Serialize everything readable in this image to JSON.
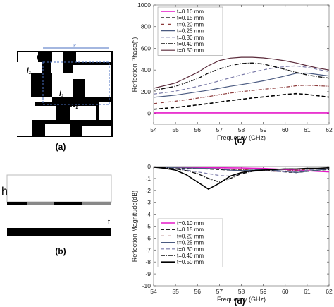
{
  "panels": {
    "a": {
      "label": "(a)",
      "dim_labels": {
        "p": "P",
        "w1": "W",
        "w1_sub": "1",
        "l1": "l",
        "l1_sub": "1",
        "w2": "W",
        "w2_sub": "2",
        "l2": "l",
        "l2_sub": "2"
      }
    },
    "b": {
      "label": "(b)",
      "h": "h",
      "t": "t"
    },
    "c": {
      "label": "(c)"
    },
    "d": {
      "label": "(d)"
    }
  },
  "chart_data": [
    {
      "id": "c",
      "type": "line",
      "xlabel": "Frequency (GHz)",
      "ylabel": "Reflection Phase(°)",
      "xlim": [
        54,
        62
      ],
      "ylim": [
        -100,
        1000
      ],
      "xticks": [
        54,
        55,
        56,
        57,
        58,
        59,
        60,
        61,
        62
      ],
      "yticks": [
        0,
        200,
        400,
        600,
        800,
        1000
      ],
      "legend_position": "top-right",
      "x": [
        54,
        55,
        56,
        56.5,
        57,
        57.5,
        58,
        58.5,
        59,
        59.5,
        60,
        60.5,
        61,
        61.5,
        62
      ],
      "series": [
        {
          "name": "t=0.10 mm",
          "color": "#e619c8",
          "dash": "",
          "width": 1.6,
          "values": [
            5,
            5,
            5,
            5,
            5,
            5,
            5,
            5,
            5,
            5,
            5,
            5,
            5,
            5,
            5
          ]
        },
        {
          "name": "t=0.15 mm",
          "color": "#000000",
          "dash": "5,3",
          "width": 1.6,
          "values": [
            38,
            55,
            78,
            90,
            105,
            118,
            130,
            142,
            152,
            163,
            175,
            182,
            175,
            162,
            150
          ]
        },
        {
          "name": "t=0.20 mm",
          "color": "#8c3a3a",
          "dash": "5,2,1,2",
          "width": 1.2,
          "values": [
            90,
            112,
            140,
            155,
            172,
            188,
            200,
            212,
            222,
            232,
            242,
            255,
            260,
            255,
            250
          ]
        },
        {
          "name": "t=0.25 mm",
          "color": "#4a5a80",
          "dash": "",
          "width": 1.2,
          "values": [
            148,
            168,
            198,
            214,
            232,
            250,
            266,
            282,
            300,
            322,
            345,
            370,
            372,
            358,
            345
          ]
        },
        {
          "name": "t=0.30 mm",
          "color": "#7a7aa8",
          "dash": "5,3",
          "width": 1.2,
          "values": [
            178,
            205,
            248,
            272,
            300,
            328,
            355,
            380,
            402,
            420,
            432,
            438,
            425,
            405,
            385
          ]
        },
        {
          "name": "t=0.40 mm",
          "color": "#111111",
          "dash": "6,2,1,2",
          "width": 1.4,
          "values": [
            212,
            250,
            320,
            372,
            410,
            440,
            460,
            465,
            455,
            432,
            405,
            378,
            355,
            338,
            325
          ]
        },
        {
          "name": "t=0.50 mm",
          "color": "#5a2a3a",
          "dash": "",
          "width": 1.2,
          "values": [
            232,
            280,
            378,
            440,
            488,
            510,
            518,
            518,
            512,
            500,
            485,
            465,
            440,
            418,
            400
          ]
        }
      ]
    },
    {
      "id": "d",
      "type": "line",
      "xlabel": "Frequency (GHz)",
      "ylabel": "Reflection Magnitude(dB)",
      "xlim": [
        54,
        62
      ],
      "ylim": [
        -10,
        0
      ],
      "xticks": [
        54,
        55,
        56,
        57,
        58,
        59,
        60,
        61,
        62
      ],
      "yticks": [
        -10,
        -9,
        -8,
        -7,
        -6,
        -5,
        -4,
        -3,
        -2,
        -1,
        0
      ],
      "legend_position": "bottom-left",
      "x": [
        54,
        54.5,
        55,
        55.5,
        56,
        56.5,
        57,
        57.5,
        58,
        58.5,
        59,
        59.5,
        60,
        60.5,
        61,
        61.5,
        62
      ],
      "series": [
        {
          "name": "t=0.10 mm",
          "color": "#e619c8",
          "dash": "",
          "width": 1.6,
          "values": [
            -0.05,
            -0.05,
            -0.06,
            -0.07,
            -0.08,
            -0.09,
            -0.1,
            -0.11,
            -0.12,
            -0.14,
            -0.16,
            -0.2,
            -0.25,
            -0.3,
            -0.35,
            -0.4,
            -0.45
          ]
        },
        {
          "name": "t=0.15 mm",
          "color": "#000000",
          "dash": "5,3",
          "width": 1.4,
          "values": [
            -0.05,
            -0.08,
            -0.12,
            -0.15,
            -0.18,
            -0.2,
            -0.25,
            -0.3,
            -0.32,
            -0.3,
            -0.28,
            -0.35,
            -0.45,
            -0.5,
            -0.4,
            -0.3,
            -0.25
          ]
        },
        {
          "name": "t=0.20 mm",
          "color": "#8c3a3a",
          "dash": "5,2,1,2",
          "width": 1.2,
          "values": [
            -0.05,
            -0.08,
            -0.1,
            -0.12,
            -0.15,
            -0.18,
            -0.2,
            -0.22,
            -0.25,
            -0.3,
            -0.35,
            -0.4,
            -0.38,
            -0.3,
            -0.25,
            -0.2,
            -0.2
          ]
        },
        {
          "name": "t=0.25 mm",
          "color": "#4a5a80",
          "dash": "",
          "width": 1.2,
          "values": [
            -0.05,
            -0.07,
            -0.1,
            -0.12,
            -0.14,
            -0.16,
            -0.2,
            -0.3,
            -0.35,
            -0.3,
            -0.25,
            -0.3,
            -0.4,
            -0.5,
            -0.4,
            -0.3,
            -0.2
          ]
        },
        {
          "name": "t=0.30 mm",
          "color": "#7a7aa8",
          "dash": "5,3",
          "width": 1.2,
          "values": [
            -0.05,
            -0.1,
            -0.2,
            -0.3,
            -0.45,
            -0.6,
            -0.75,
            -0.8,
            -0.6,
            -0.4,
            -0.35,
            -0.4,
            -0.45,
            -0.4,
            -0.3,
            -0.2,
            -0.15
          ]
        },
        {
          "name": "t=0.40 mm",
          "color": "#111111",
          "dash": "6,2,1,2",
          "width": 1.4,
          "values": [
            -0.05,
            -0.1,
            -0.2,
            -0.35,
            -0.6,
            -1.0,
            -1.3,
            -1.0,
            -0.6,
            -0.4,
            -0.3,
            -0.25,
            -0.2,
            -0.2,
            -0.2,
            -0.2,
            -0.2
          ]
        },
        {
          "name": "t=0.50 mm",
          "color": "#000000",
          "dash": "",
          "width": 1.6,
          "values": [
            -0.05,
            -0.15,
            -0.3,
            -0.7,
            -1.3,
            -1.9,
            -1.4,
            -0.8,
            -0.5,
            -0.35,
            -0.3,
            -0.25,
            -0.2,
            -0.2,
            -0.15,
            -0.15,
            -0.1
          ]
        }
      ]
    }
  ]
}
